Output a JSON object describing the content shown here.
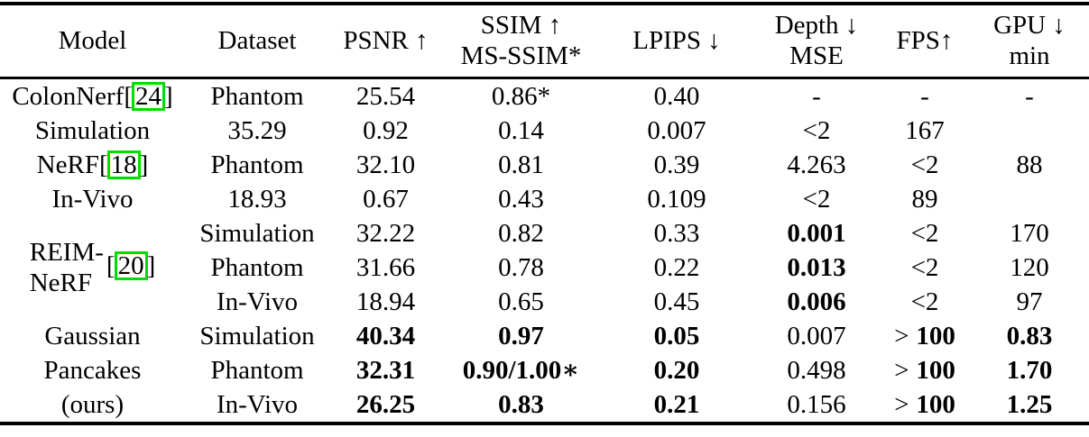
{
  "colors": {
    "background": "#ffffff",
    "text": "#000000",
    "rule": "#000000",
    "citation_border": "#00dd00"
  },
  "table": {
    "headers": {
      "model": "Model",
      "dataset": "Dataset",
      "psnr": "PSNR ↑",
      "ssim_line1": "SSIM ↑",
      "ssim_line2": "MS-SSIM*",
      "lpips": "LPIPS ↓",
      "depth_line1": "Depth ↓",
      "depth_line2": "MSE",
      "fps": "FPS↑",
      "gpu_line1": "GPU ↓",
      "gpu_line2": "min"
    },
    "models": {
      "colonnerf": {
        "name": "ColonNerf",
        "bracket_open": "[",
        "cite": "24",
        "bracket_close": "]"
      },
      "nerf": {
        "name": "NeRF",
        "bracket_open": "[",
        "cite": "18",
        "bracket_close": "]"
      },
      "reim": {
        "line1": "REIM-",
        "line2": "NeRF",
        "bracket_open": "[",
        "cite": "20",
        "bracket_close": "]"
      },
      "ours": {
        "line1": "Gaussian",
        "line2": "Pancakes",
        "line3": "(ours)"
      }
    },
    "rows": [
      {
        "dataset": "Phantom",
        "psnr": "25.54",
        "ssim": "0.86*",
        "lpips": "0.40",
        "depth": "-",
        "fps": "-",
        "gpu": "-"
      },
      {
        "dataset": "Simulation",
        "psnr": "35.29",
        "ssim": "0.92",
        "lpips": "0.14",
        "depth": "0.007",
        "fps": "<2",
        "gpu": "167"
      },
      {
        "dataset": "Phantom",
        "psnr": "32.10",
        "ssim": "0.81",
        "lpips": "0.39",
        "depth": "4.263",
        "fps": "<2",
        "gpu": "88"
      },
      {
        "dataset": "In-Vivo",
        "psnr": "18.93",
        "ssim": "0.67",
        "lpips": "0.43",
        "depth": "0.109",
        "fps": "<2",
        "gpu": "89"
      },
      {
        "dataset": "Simulation",
        "psnr": "32.22",
        "ssim": "0.82",
        "lpips": "0.33",
        "depth": "0.001",
        "fps": "<2",
        "gpu": "170"
      },
      {
        "dataset": "Phantom",
        "psnr": "31.66",
        "ssim": "0.78",
        "lpips": "0.22",
        "depth": "0.013",
        "fps": "<2",
        "gpu": "120"
      },
      {
        "dataset": "In-Vivo",
        "psnr": "18.94",
        "ssim": "0.65",
        "lpips": "0.45",
        "depth": "0.006",
        "fps": "<2",
        "gpu": "97"
      },
      {
        "dataset": "Simulation",
        "psnr": "40.34",
        "ssim": "0.97",
        "lpips": "0.05",
        "depth": "0.007",
        "fps_sign": ">",
        "fps_num": "100",
        "gpu": "0.83"
      },
      {
        "dataset": "Phantom",
        "psnr": "32.31",
        "ssim": "0.90/1.00∗",
        "lpips": "0.20",
        "depth": "0.498",
        "fps_sign": ">",
        "fps_num": "100",
        "gpu": "1.70"
      },
      {
        "dataset": "In-Vivo",
        "psnr": "26.25",
        "ssim": "0.83",
        "lpips": "0.21",
        "depth": "0.156",
        "fps_sign": ">",
        "fps_num": "100",
        "gpu": "1.25"
      }
    ]
  }
}
